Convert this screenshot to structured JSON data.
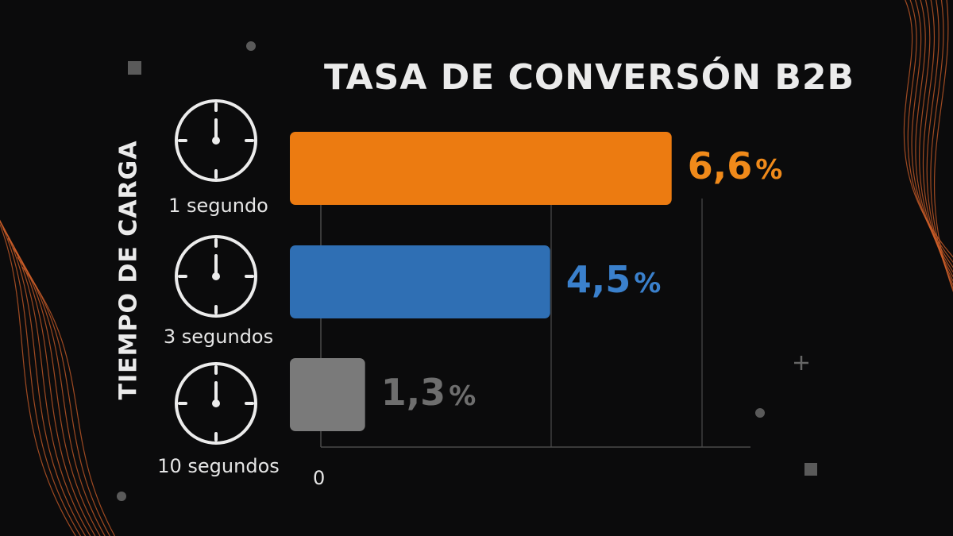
{
  "chart_data": {
    "type": "bar",
    "orientation": "horizontal",
    "title": "TASA DE CONVERSÓN B2B",
    "ylabel": "TIEMPO DE CARGA",
    "xlabel": "",
    "categories": [
      "1 segundo",
      "3 segundos",
      "10 segundos"
    ],
    "values": [
      6.6,
      4.5,
      1.3
    ],
    "value_labels": [
      "6,6",
      "4,5",
      "1,3"
    ],
    "value_suffix": "%",
    "colors": [
      "#ec7b11",
      "#2f6fb4",
      "#7a7a7a"
    ],
    "label_colors": [
      "#f08a1a",
      "#3a80cc",
      "#6e6e6e"
    ],
    "x_tick_labels": [
      "0"
    ],
    "xlim": [
      0,
      7.4
    ],
    "grid": true,
    "category_icon": "clock-icon"
  }
}
